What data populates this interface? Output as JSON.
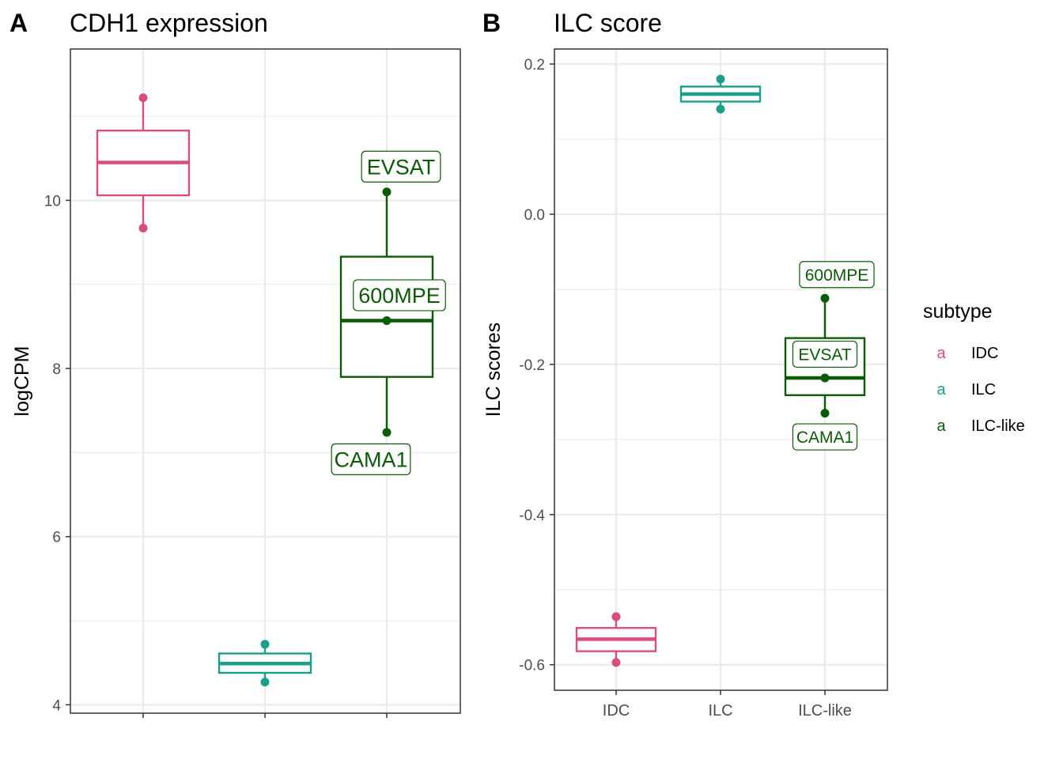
{
  "colors": {
    "IDC": "#D6507A",
    "ILC": "#1B9E8A",
    "ILC-like": "#0B5A06",
    "grid": "#EBEBEB",
    "axis_text": "#4D4D4D",
    "panel_border": "#333333"
  },
  "legend": {
    "title": "subtype",
    "key_glyph": "a",
    "entries": [
      "IDC",
      "ILC",
      "ILC-like"
    ]
  },
  "chart_data": [
    {
      "type": "box",
      "tag": "A",
      "title": "CDH1 expression",
      "xlabel": "",
      "ylabel": "logCPM",
      "categories": [
        "IDC",
        "ILC",
        "ILC-like"
      ],
      "show_x_tick_labels": false,
      "ylim": [
        3.9,
        11.8
      ],
      "y_ticks": [
        4,
        6,
        8,
        10
      ],
      "grid": true,
      "boxes": [
        {
          "category": "IDC",
          "min": 9.67,
          "q1": 10.06,
          "median": 10.45,
          "q3": 10.83,
          "max": 11.22
        },
        {
          "category": "ILC",
          "min": 4.27,
          "q1": 4.38,
          "median": 4.49,
          "q3": 4.61,
          "max": 4.72
        },
        {
          "category": "ILC-like",
          "min": 7.24,
          "q1": 7.9,
          "median": 8.57,
          "q3": 9.33,
          "max": 10.1
        }
      ],
      "points": [
        {
          "category": "IDC",
          "value": 11.22
        },
        {
          "category": "IDC",
          "value": 9.67
        },
        {
          "category": "ILC",
          "value": 4.72
        },
        {
          "category": "ILC",
          "value": 4.27
        },
        {
          "category": "ILC-like",
          "value": 10.1,
          "label": "EVSAT"
        },
        {
          "category": "ILC-like",
          "value": 8.57,
          "label": "600MPE"
        },
        {
          "category": "ILC-like",
          "value": 7.24,
          "label": "CAMA1"
        }
      ]
    },
    {
      "type": "box",
      "tag": "B",
      "title": "ILC score",
      "xlabel": "",
      "ylabel": "ILC scores",
      "categories": [
        "IDC",
        "ILC",
        "ILC-like"
      ],
      "show_x_tick_labels": true,
      "ylim": [
        -0.634,
        0.22
      ],
      "y_ticks": [
        -0.6,
        -0.4,
        -0.2,
        0.0,
        0.2
      ],
      "y_tick_labels": [
        "-0.6",
        "-0.4",
        "-0.2",
        "0.0",
        "0.2"
      ],
      "grid": true,
      "boxes": [
        {
          "category": "IDC",
          "min": -0.597,
          "q1": -0.582,
          "median": -0.566,
          "q3": -0.551,
          "max": -0.536
        },
        {
          "category": "ILC",
          "min": 0.14,
          "q1": 0.15,
          "median": 0.16,
          "q3": 0.17,
          "max": 0.18
        },
        {
          "category": "ILC-like",
          "min": -0.265,
          "q1": -0.241,
          "median": -0.218,
          "q3": -0.165,
          "max": -0.112
        }
      ],
      "points": [
        {
          "category": "IDC",
          "value": -0.536
        },
        {
          "category": "IDC",
          "value": -0.597
        },
        {
          "category": "ILC",
          "value": 0.18
        },
        {
          "category": "ILC",
          "value": 0.14
        },
        {
          "category": "ILC-like",
          "value": -0.112,
          "label": "600MPE"
        },
        {
          "category": "ILC-like",
          "value": -0.218,
          "label": "EVSAT"
        },
        {
          "category": "ILC-like",
          "value": -0.265,
          "label": "CAMA1"
        }
      ]
    }
  ]
}
